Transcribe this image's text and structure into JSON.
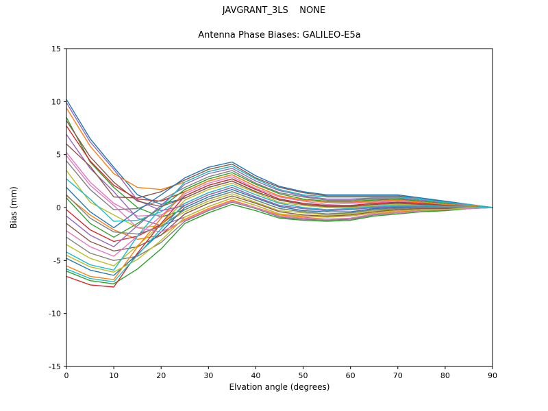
{
  "chart_data": {
    "type": "line",
    "suptitle": "JAVGRANT_3LS    NONE",
    "title": "Antenna Phase Biases: GALILEO-E5a",
    "xlabel": "Elvation angle (degrees)",
    "ylabel": "Bias (mm)",
    "xlim": [
      0,
      90
    ],
    "ylim": [
      -15,
      15
    ],
    "xticks": [
      0,
      10,
      20,
      30,
      40,
      50,
      60,
      70,
      80,
      90
    ],
    "yticks": [
      -15,
      -10,
      -5,
      0,
      5,
      10,
      15
    ],
    "grid": false,
    "legend": "none",
    "x": [
      0,
      5,
      10,
      15,
      20,
      25,
      30,
      35,
      40,
      45,
      50,
      55,
      60,
      65,
      70,
      75,
      80,
      85,
      90
    ],
    "colors": [
      "#1f77b4",
      "#ff7f0e",
      "#2ca02c",
      "#d62728",
      "#9467bd",
      "#8c564b",
      "#e377c2",
      "#7f7f7f",
      "#bcbd22",
      "#17becf"
    ],
    "series": [
      [
        10.2,
        6.5,
        3.8,
        1.2,
        0.3,
        0.9,
        1.9,
        2.5,
        1.5,
        0.7,
        0.3,
        0.1,
        0.1,
        0.3,
        0.4,
        0.3,
        0.2,
        0.1,
        0
      ],
      [
        9.4,
        5.8,
        3.2,
        1.9,
        1.7,
        2.4,
        3.4,
        3.9,
        2.7,
        1.7,
        1.2,
        1.0,
        1.0,
        1.0,
        1.0,
        0.8,
        0.5,
        0.3,
        0
      ],
      [
        8.5,
        4.3,
        1.9,
        0.0,
        -0.9,
        -0.2,
        0.8,
        1.5,
        0.7,
        -0.1,
        -0.4,
        -0.6,
        -0.5,
        -0.2,
        -0.1,
        0.0,
        0.0,
        0.0,
        0
      ],
      [
        7.7,
        4.4,
        2.1,
        0.8,
        0.6,
        1.5,
        2.5,
        3.1,
        2.0,
        1.1,
        0.7,
        0.5,
        0.5,
        0.6,
        0.7,
        0.5,
        0.3,
        0.2,
        0
      ],
      [
        6.9,
        3.7,
        1.5,
        -1.0,
        -1.7,
        -0.9,
        0.1,
        0.9,
        0.2,
        -0.6,
        -0.8,
        -0.9,
        -0.8,
        -0.5,
        -0.3,
        -0.2,
        -0.2,
        0.0,
        0
      ],
      [
        6.0,
        3.9,
        1.0,
        0.9,
        1.5,
        2.6,
        3.6,
        4.1,
        2.8,
        1.9,
        1.4,
        1.1,
        1.1,
        1.1,
        1.1,
        0.8,
        0.6,
        0.3,
        0
      ],
      [
        5.2,
        2.4,
        0.4,
        -0.8,
        -0.7,
        0.4,
        1.4,
        2.1,
        1.2,
        0.4,
        0.0,
        -0.2,
        -0.1,
        0.1,
        0.2,
        0.2,
        0.1,
        0.1,
        0
      ],
      [
        4.4,
        1.7,
        -0.2,
        -0.1,
        0.7,
        1.9,
        2.9,
        3.5,
        2.3,
        1.4,
        1.0,
        0.7,
        0.7,
        0.8,
        0.8,
        0.6,
        0.4,
        0.2,
        0
      ],
      [
        3.5,
        0.5,
        -0.7,
        -1.9,
        -1.7,
        -0.4,
        0.6,
        1.3,
        0.5,
        -0.3,
        -0.5,
        -0.7,
        -0.6,
        -0.3,
        -0.2,
        -0.1,
        -0.1,
        0.0,
        0
      ],
      [
        2.7,
        0.8,
        -1.3,
        -1.2,
        -0.4,
        1.1,
        2.1,
        2.7,
        1.7,
        0.8,
        0.4,
        0.2,
        0.2,
        0.4,
        0.5,
        0.4,
        0.2,
        0.1,
        0
      ],
      [
        1.9,
        -0.4,
        -1.9,
        -0.3,
        1.2,
        2.8,
        3.8,
        4.3,
        3.0,
        2.0,
        1.5,
        1.2,
        1.2,
        1.2,
        1.2,
        0.9,
        0.6,
        0.3,
        0
      ],
      [
        1.1,
        -0.7,
        -2.1,
        -3.0,
        -2.6,
        -1.1,
        -0.1,
        0.7,
        0.0,
        -0.7,
        -0.9,
        -1.1,
        -1.0,
        -0.6,
        -0.4,
        -0.3,
        -0.2,
        -0.1,
        0
      ],
      [
        0.9,
        -1.5,
        -2.8,
        -1.5,
        0.0,
        1.7,
        2.7,
        3.3,
        2.2,
        1.3,
        0.8,
        0.6,
        0.6,
        0.7,
        0.8,
        0.6,
        0.4,
        0.2,
        0
      ],
      [
        -0.2,
        -2.1,
        -3.2,
        -2.7,
        -1.6,
        0.2,
        1.2,
        1.9,
        1.0,
        0.2,
        -0.1,
        -0.3,
        -0.2,
        0.0,
        0.1,
        0.1,
        0.1,
        0.1,
        0
      ],
      [
        -0.8,
        -2.6,
        -3.7,
        -1.7,
        0.2,
        2.2,
        3.2,
        3.7,
        2.5,
        1.6,
        1.1,
        0.8,
        0.8,
        0.9,
        0.9,
        0.7,
        0.5,
        0.2,
        0
      ],
      [
        -1.5,
        -3.2,
        -4.1,
        -3.7,
        -2.6,
        -0.6,
        0.4,
        1.1,
        0.4,
        -0.4,
        -0.7,
        -0.8,
        -0.7,
        -0.4,
        -0.2,
        -0.1,
        -0.1,
        0.0,
        0
      ],
      [
        -2.2,
        -3.7,
        -4.6,
        -2.7,
        -0.8,
        1.3,
        2.3,
        2.9,
        1.8,
        1.0,
        0.6,
        0.3,
        0.4,
        0.5,
        0.6,
        0.4,
        0.3,
        0.2,
        0
      ],
      [
        -2.8,
        -4.3,
        -5.0,
        -4.6,
        -3.3,
        -1.3,
        -0.3,
        0.5,
        -0.1,
        -0.9,
        -1.1,
        -1.2,
        -1.1,
        -0.7,
        -0.5,
        -0.3,
        -0.3,
        -0.1,
        0
      ],
      [
        -3.5,
        -4.8,
        -5.5,
        -3.6,
        -1.6,
        0.7,
        1.7,
        2.3,
        1.4,
        0.5,
        0.2,
        0.0,
        0.0,
        0.2,
        0.3,
        0.3,
        0.2,
        0.1,
        0
      ],
      [
        -4.2,
        -5.4,
        -5.9,
        -2.7,
        0.0,
        2.4,
        3.4,
        3.9,
        2.7,
        1.7,
        1.2,
        1.0,
        1.0,
        1.0,
        1.0,
        0.8,
        0.5,
        0.3,
        0
      ],
      [
        -4.8,
        -5.9,
        -6.4,
        -4.4,
        -2.3,
        0.0,
        1.0,
        1.7,
        0.9,
        0.1,
        -0.3,
        -0.4,
        -0.4,
        -0.1,
        0.0,
        0.1,
        0.0,
        0.0,
        0
      ],
      [
        -5.5,
        -6.5,
        -6.8,
        -3.7,
        -1.0,
        1.5,
        2.5,
        3.1,
        2.0,
        1.1,
        0.7,
        0.5,
        0.5,
        0.6,
        0.7,
        0.5,
        0.3,
        0.2,
        0
      ],
      [
        -6.0,
        -6.9,
        -7.2,
        -5.8,
        -3.9,
        -1.5,
        -0.5,
        0.3,
        -0.3,
        -1.0,
        -1.2,
        -1.3,
        -1.2,
        -0.8,
        -0.6,
        -0.4,
        -0.3,
        -0.1,
        0
      ],
      [
        -6.5,
        -7.3,
        -7.5,
        -4.3,
        -1.5,
        1.1,
        2.1,
        2.7,
        1.7,
        0.8,
        0.4,
        0.2,
        0.2,
        0.4,
        0.5,
        0.4,
        0.2,
        0.1,
        0
      ],
      [
        9.9,
        6.2,
        3.6,
        0.7,
        -0.3,
        0.2,
        1.2,
        1.9,
        1.0,
        0.2,
        -0.1,
        -0.3,
        -0.2,
        0.0,
        0.1,
        0.1,
        0.1,
        0.1,
        0
      ],
      [
        8.2,
        4.8,
        2.4,
        0.6,
        0.1,
        0.9,
        1.9,
        2.5,
        1.5,
        0.7,
        0.3,
        0.1,
        0.1,
        0.3,
        0.4,
        0.3,
        0.2,
        0.1,
        0
      ],
      [
        4.9,
        2.1,
        0.2,
        -1.9,
        -2.3,
        -1.2,
        -0.2,
        0.6,
        0.0,
        -0.8,
        -1.0,
        -1.1,
        -1.0,
        -0.6,
        -0.5,
        -0.3,
        -0.2,
        -0.1,
        0
      ],
      [
        1.2,
        -1.0,
        -2.3,
        -2.5,
        -1.8,
        -0.2,
        0.8,
        1.5,
        0.7,
        -0.1,
        -0.4,
        -0.6,
        -0.5,
        -0.2,
        -0.1,
        0.0,
        0.0,
        0.0,
        0
      ],
      [
        -4.5,
        -5.6,
        -6.1,
        -4.9,
        -3.1,
        -0.9,
        0.1,
        0.9,
        0.2,
        -0.6,
        -0.8,
        -0.9,
        -0.8,
        -0.5,
        -0.3,
        -0.2,
        -0.2,
        0.0,
        0
      ],
      [
        -5.8,
        -6.7,
        -7.0,
        -4.5,
        -2.0,
        0.4,
        1.4,
        2.1,
        1.2,
        0.4,
        0.0,
        -0.2,
        -0.1,
        0.1,
        0.2,
        0.2,
        0.1,
        0.1,
        0
      ]
    ]
  }
}
